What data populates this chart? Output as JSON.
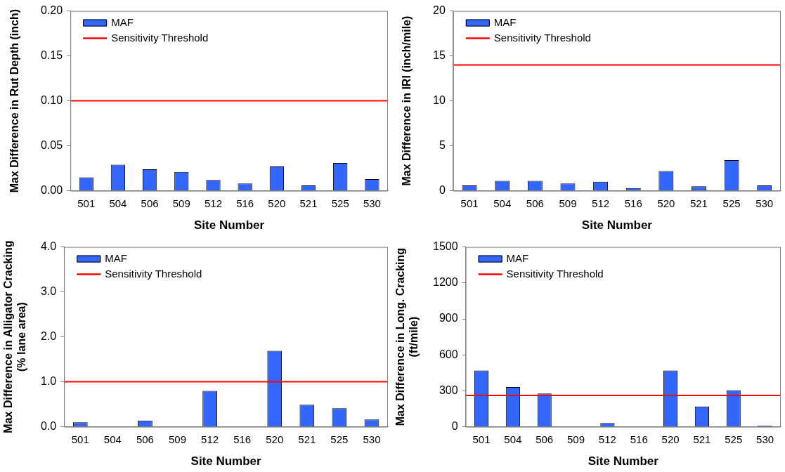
{
  "chart_data": [
    {
      "type": "bar",
      "ylabel": "Max Difference in Rut Depth (inch)",
      "xlabel": "Site Number",
      "categories": [
        "501",
        "504",
        "506",
        "509",
        "512",
        "516",
        "520",
        "521",
        "525",
        "530"
      ],
      "series": [
        {
          "name": "MAF",
          "color": "#3366ff",
          "values": [
            0.015,
            0.029,
            0.024,
            0.021,
            0.012,
            0.008,
            0.027,
            0.006,
            0.031,
            0.013
          ]
        }
      ],
      "ylim": [
        0,
        0.2
      ],
      "yticks": [
        {
          "value": 0,
          "label": "0.00"
        },
        {
          "value": 0.05,
          "label": "0.05"
        },
        {
          "value": 0.1,
          "label": "0.10"
        },
        {
          "value": 0.15,
          "label": "0.15"
        },
        {
          "value": 0.2,
          "label": "0.20"
        }
      ],
      "ref_lines": [
        {
          "axis": "y",
          "value": 0.1,
          "label": "Sensitivity Threshold",
          "color": "#ff0000"
        }
      ],
      "legend": "top left",
      "grid": false
    },
    {
      "type": "bar",
      "ylabel": "Max Difference in IRI (inch/mile)",
      "xlabel": "Site Number",
      "categories": [
        "501",
        "504",
        "506",
        "509",
        "512",
        "516",
        "520",
        "521",
        "525",
        "530"
      ],
      "series": [
        {
          "name": "MAF",
          "color": "#3366ff",
          "values": [
            0.6,
            1.1,
            1.1,
            0.8,
            1.0,
            0.3,
            2.2,
            0.5,
            3.4,
            0.6
          ]
        }
      ],
      "ylim": [
        0,
        20
      ],
      "yticks": [
        0,
        5,
        10,
        15,
        20
      ],
      "ref_lines": [
        {
          "axis": "y",
          "value": 14,
          "label": "Sensitivity Threshold",
          "color": "#ff0000"
        }
      ],
      "legend": "top left",
      "grid": false
    },
    {
      "type": "bar",
      "ylabel": "Max Difference in Alligator Cracking (% lane area)",
      "xlabel": "Site Number",
      "categories": [
        "501",
        "504",
        "506",
        "509",
        "512",
        "516",
        "520",
        "521",
        "525",
        "530"
      ],
      "series": [
        {
          "name": "MAF",
          "color": "#3366ff",
          "values": [
            0.1,
            0,
            0.14,
            0,
            0.8,
            0,
            1.69,
            0.49,
            0.41,
            0.16
          ]
        }
      ],
      "ylim": [
        0,
        4
      ],
      "yticks": [
        {
          "value": 0,
          "label": "0.0"
        },
        {
          "value": 1,
          "label": "1.0"
        },
        {
          "value": 2,
          "label": "2.0"
        },
        {
          "value": 3,
          "label": "3.0"
        },
        {
          "value": 4,
          "label": "4.0"
        }
      ],
      "ref_lines": [
        {
          "axis": "y",
          "value": 1,
          "label": "Sensitivity Threshold",
          "color": "#ff0000"
        }
      ],
      "legend": "top left",
      "grid": false
    },
    {
      "type": "bar",
      "ylabel": "Max Difference in Long. Cracking (ft/mile)",
      "xlabel": "Site Number",
      "categories": [
        "501",
        "504",
        "506",
        "509",
        "512",
        "516",
        "520",
        "521",
        "525",
        "530"
      ],
      "series": [
        {
          "name": "MAF",
          "color": "#3366ff",
          "values": [
            469,
            331,
            277,
            0,
            31,
            0,
            469,
            169,
            306,
            10
          ]
        }
      ],
      "ylim": [
        0,
        1500
      ],
      "yticks": [
        0,
        300,
        600,
        900,
        1200,
        1500
      ],
      "ref_lines": [
        {
          "axis": "y",
          "value": 262,
          "label": "Sensitivity Threshold",
          "color": "#ff0000"
        }
      ],
      "legend": "top left",
      "grid": false
    }
  ]
}
